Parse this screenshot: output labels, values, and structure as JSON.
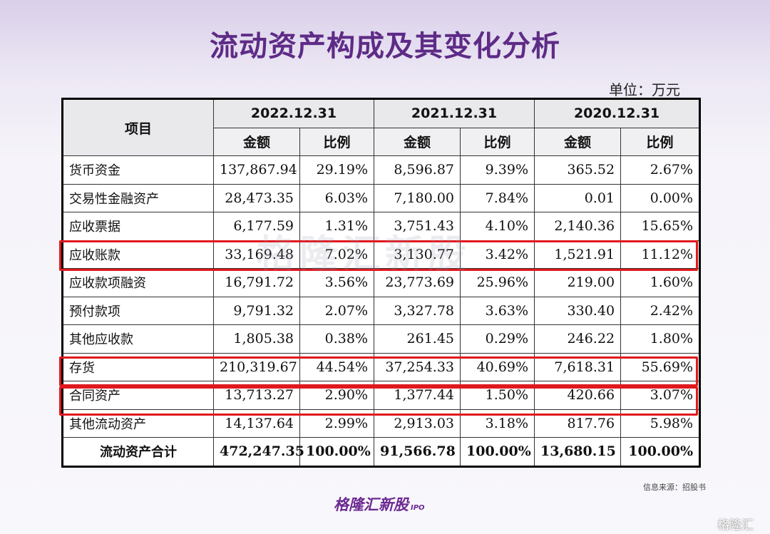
{
  "title": "流动资产构成及其变化分析",
  "unit": "单位：万元",
  "table": {
    "item_header": "项目",
    "years": [
      "2022.12.31",
      "2021.12.31",
      "2020.12.31"
    ],
    "sub_headers": [
      "金额",
      "比例",
      "金额",
      "比例",
      "金额",
      "比例"
    ],
    "rows": [
      {
        "name": "货币资金",
        "v": [
          "137,867.94",
          "29.19%",
          "8,596.87",
          "9.39%",
          "365.52",
          "2.67%"
        ]
      },
      {
        "name": "交易性金融资产",
        "v": [
          "28,473.35",
          "6.03%",
          "7,180.00",
          "7.84%",
          "0.01",
          "0.00%"
        ]
      },
      {
        "name": "应收票据",
        "v": [
          "6,177.59",
          "1.31%",
          "3,751.43",
          "4.10%",
          "2,140.36",
          "15.65%"
        ]
      },
      {
        "name": "应收账款",
        "v": [
          "33,169.48",
          "7.02%",
          "3,130.77",
          "3.42%",
          "1,521.91",
          "11.12%"
        ]
      },
      {
        "name": "应收款项融资",
        "v": [
          "16,791.72",
          "3.56%",
          "23,773.69",
          "25.96%",
          "219.00",
          "1.60%"
        ]
      },
      {
        "name": "预付款项",
        "v": [
          "9,791.32",
          "2.07%",
          "3,327.78",
          "3.63%",
          "330.40",
          "2.42%"
        ]
      },
      {
        "name": "其他应收款",
        "v": [
          "1,805.38",
          "0.38%",
          "261.45",
          "0.29%",
          "246.22",
          "1.80%"
        ]
      },
      {
        "name": "存货",
        "v": [
          "210,319.67",
          "44.54%",
          "37,254.33",
          "40.69%",
          "7,618.31",
          "55.69%"
        ]
      },
      {
        "name": "合同资产",
        "v": [
          "13,713.27",
          "2.90%",
          "1,377.44",
          "1.50%",
          "420.66",
          "3.07%"
        ]
      },
      {
        "name": "其他流动资产",
        "v": [
          "14,137.64",
          "2.99%",
          "2,913.03",
          "3.18%",
          "817.76",
          "5.98%"
        ]
      },
      {
        "name": "流动资产合计",
        "v": [
          "472,247.35",
          "100.00%",
          "91,566.78",
          "100.00%",
          "13,680.15",
          "100.00%"
        ]
      }
    ]
  },
  "source": "信息来源：招股书",
  "brand": "格隆汇新股",
  "brand_suffix": "IPO",
  "watermark": "格隆汇新股",
  "corner_logo": "格隆汇",
  "colors": {
    "title": "#5e2b86",
    "highlight": "#e0191e"
  }
}
